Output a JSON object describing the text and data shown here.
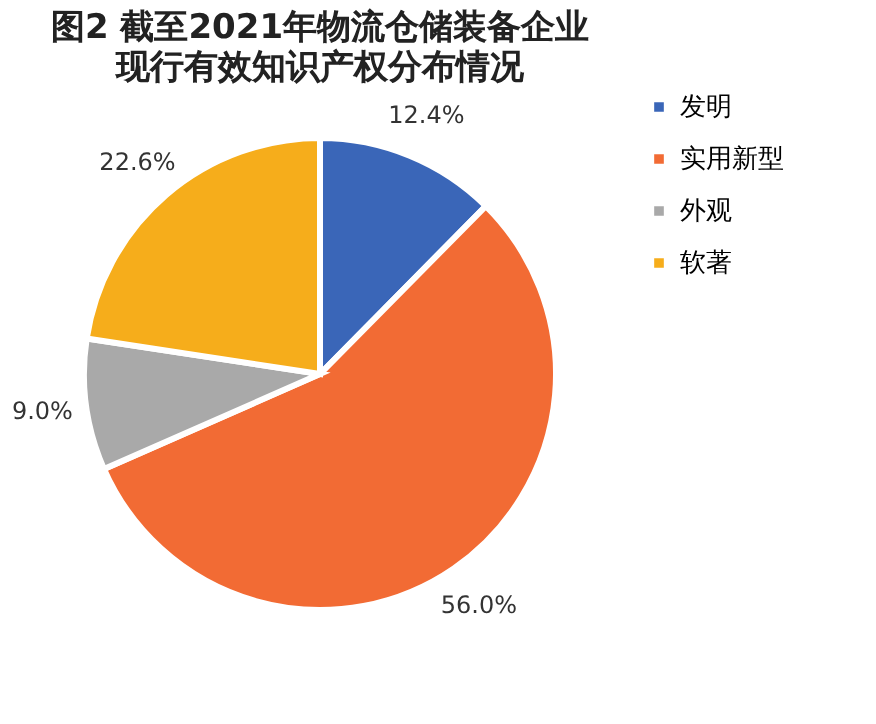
{
  "chart_data": {
    "type": "pie",
    "title": "图2 截至2021年物流仓储装备企业",
    "subtitle": "现行有效知识产权分布情况",
    "categories": [
      "发明",
      "实用新型",
      "外观",
      "软著"
    ],
    "values": [
      12.4,
      56.0,
      9.0,
      22.6
    ],
    "colors": [
      "#3a66b8",
      "#f26b34",
      "#a9a9a9",
      "#f6ad1b"
    ],
    "value_labels": [
      "12.4%",
      "56.0%",
      "9.0%",
      "22.6%"
    ],
    "legend": "right"
  }
}
